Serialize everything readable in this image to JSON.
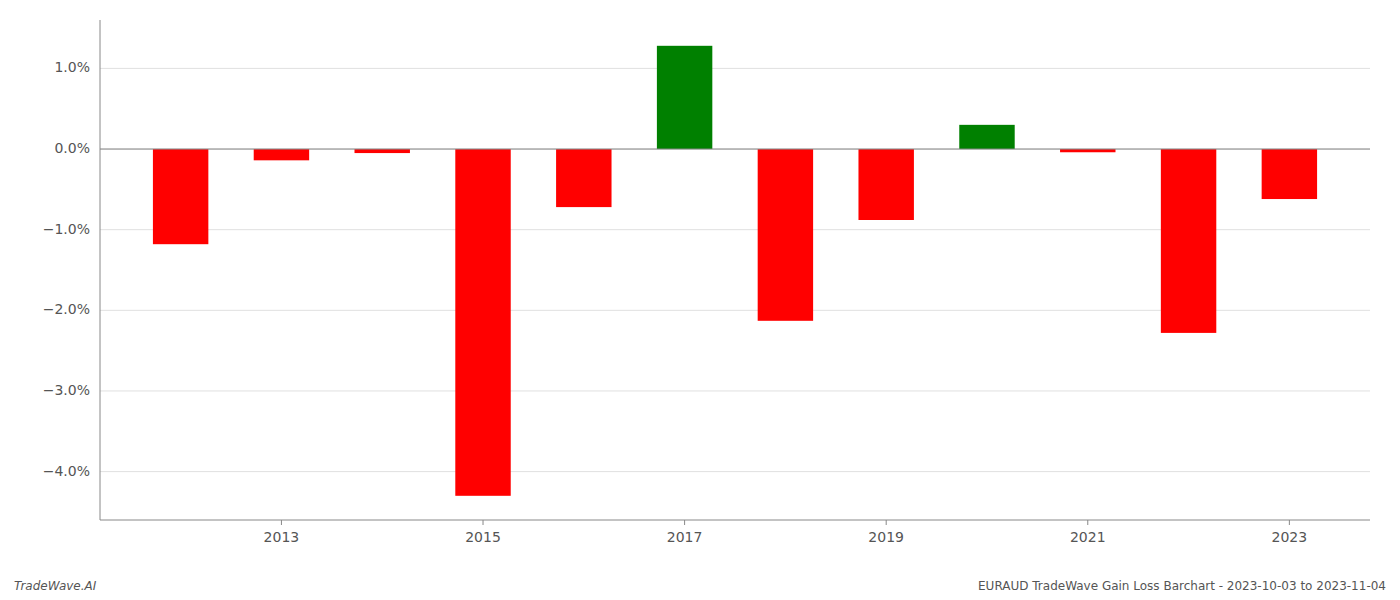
{
  "chart_data": {
    "type": "bar",
    "x": [
      2012,
      2013,
      2014,
      2015,
      2016,
      2017,
      2018,
      2019,
      2020,
      2021,
      2022,
      2023
    ],
    "values": [
      -1.18,
      -0.14,
      -0.05,
      -4.3,
      -0.72,
      1.28,
      -2.13,
      -0.88,
      0.3,
      -0.04,
      -2.28,
      -0.62
    ],
    "colors": [
      "#FF0000",
      "#FF0000",
      "#FF0000",
      "#FF0000",
      "#FF0000",
      "#008000",
      "#FF0000",
      "#FF0000",
      "#008000",
      "#FF0000",
      "#FF0000",
      "#FF0000"
    ],
    "xlim": [
      2011.2,
      2023.8
    ],
    "xticks": [
      2013,
      2015,
      2017,
      2019,
      2021,
      2023
    ],
    "ylim": [
      -4.6,
      1.6
    ],
    "yticks": [
      {
        "value": -4,
        "label": "−4.0%"
      },
      {
        "value": -3,
        "label": "−3.0%"
      },
      {
        "value": -2,
        "label": "−2.0%"
      },
      {
        "value": -1,
        "label": "−1.0%"
      },
      {
        "value": 0,
        "label": "0.0%"
      },
      {
        "value": 1,
        "label": "1.0%"
      }
    ],
    "grid": true,
    "annotations": [
      "TradeWave.AI",
      "EURAUD TradeWave Gain Loss Barchart - 2023-10-03 to 2023-11-04"
    ]
  }
}
